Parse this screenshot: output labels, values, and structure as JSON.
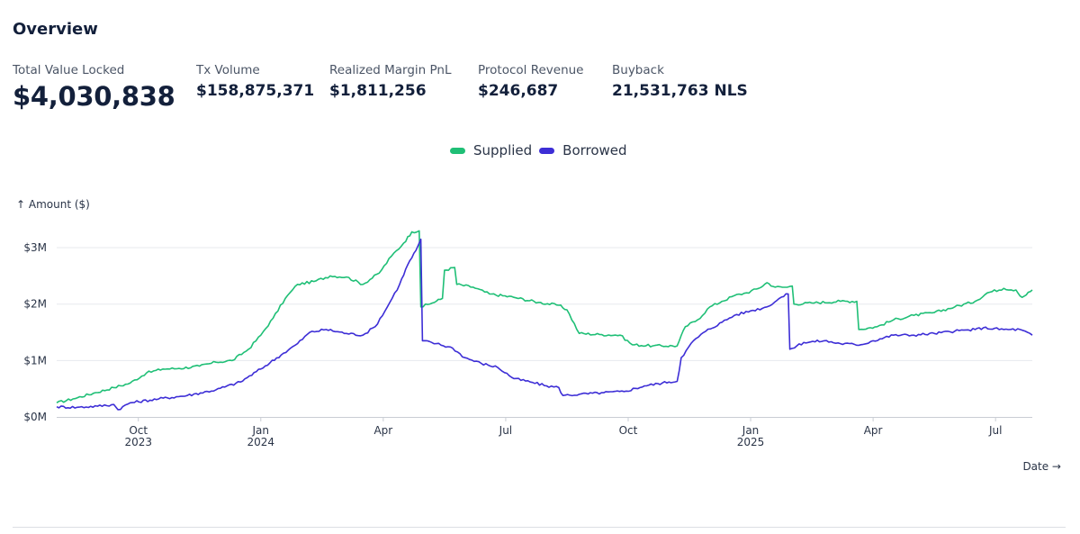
{
  "page": {
    "title": "Overview"
  },
  "stats": [
    {
      "label": "Total Value Locked",
      "value": "$4,030,838"
    },
    {
      "label": "Tx Volume",
      "value": "$158,875,371"
    },
    {
      "label": "Realized Margin PnL",
      "value": "$1,811,256"
    },
    {
      "label": "Protocol Revenue",
      "value": "$246,687"
    },
    {
      "label": "Buyback",
      "value": "21,531,763 NLS"
    }
  ],
  "colors": {
    "supplied": "#1fbf76",
    "borrowed": "#3d2ed6",
    "grid": "#e7e9ee",
    "text": "#2a3447"
  },
  "chart_data": {
    "type": "line",
    "title": "",
    "ylabel": "↑ Amount ($)",
    "xlabel": "Date →",
    "ylim": [
      0,
      3.4
    ],
    "y_unit": "millions",
    "y_ticks": [
      {
        "value": 0,
        "label": "$0M"
      },
      {
        "value": 1,
        "label": "$1M"
      },
      {
        "value": 2,
        "label": "$2M"
      },
      {
        "value": 3,
        "label": "$3M"
      }
    ],
    "xlim": [
      0,
      23.9
    ],
    "x_unit": "months since 2023-08-01",
    "x_ticks": [
      {
        "x": 2,
        "label": "Oct",
        "sub": "2023"
      },
      {
        "x": 5,
        "label": "Jan",
        "sub": "2024"
      },
      {
        "x": 8,
        "label": "Apr",
        "sub": ""
      },
      {
        "x": 11,
        "label": "Jul",
        "sub": ""
      },
      {
        "x": 14,
        "label": "Oct",
        "sub": ""
      },
      {
        "x": 17,
        "label": "Jan",
        "sub": "2025"
      },
      {
        "x": 20,
        "label": "Apr",
        "sub": ""
      },
      {
        "x": 23,
        "label": "Jul",
        "sub": ""
      }
    ],
    "series": [
      {
        "name": "Supplied",
        "points": [
          [
            0,
            0.25
          ],
          [
            0.4,
            0.32
          ],
          [
            0.9,
            0.42
          ],
          [
            1.4,
            0.52
          ],
          [
            1.8,
            0.6
          ],
          [
            2.2,
            0.78
          ],
          [
            2.6,
            0.85
          ],
          [
            3.0,
            0.86
          ],
          [
            3.5,
            0.9
          ],
          [
            3.9,
            0.97
          ],
          [
            4.3,
            1.0
          ],
          [
            4.7,
            1.2
          ],
          [
            5.0,
            1.45
          ],
          [
            5.3,
            1.75
          ],
          [
            5.6,
            2.1
          ],
          [
            5.9,
            2.35
          ],
          [
            6.3,
            2.4
          ],
          [
            6.7,
            2.5
          ],
          [
            7.1,
            2.48
          ],
          [
            7.5,
            2.35
          ],
          [
            7.9,
            2.55
          ],
          [
            8.2,
            2.85
          ],
          [
            8.5,
            3.08
          ],
          [
            8.7,
            3.28
          ],
          [
            8.88,
            3.3
          ],
          [
            8.92,
            1.95
          ],
          [
            9.2,
            2.02
          ],
          [
            9.45,
            2.1
          ],
          [
            9.5,
            2.6
          ],
          [
            9.75,
            2.65
          ],
          [
            9.8,
            2.35
          ],
          [
            10.2,
            2.3
          ],
          [
            10.6,
            2.18
          ],
          [
            11.2,
            2.12
          ],
          [
            11.8,
            2.03
          ],
          [
            12.3,
            1.98
          ],
          [
            12.5,
            1.9
          ],
          [
            12.8,
            1.48
          ],
          [
            13.3,
            1.46
          ],
          [
            13.8,
            1.45
          ],
          [
            14.1,
            1.28
          ],
          [
            14.6,
            1.26
          ],
          [
            15.2,
            1.26
          ],
          [
            15.4,
            1.6
          ],
          [
            15.7,
            1.72
          ],
          [
            16.0,
            1.95
          ],
          [
            16.3,
            2.05
          ],
          [
            16.6,
            2.15
          ],
          [
            16.9,
            2.2
          ],
          [
            17.2,
            2.28
          ],
          [
            17.4,
            2.38
          ],
          [
            17.6,
            2.3
          ],
          [
            17.9,
            2.3
          ],
          [
            18.02,
            2.32
          ],
          [
            18.06,
            2.0
          ],
          [
            18.5,
            2.02
          ],
          [
            19.2,
            2.05
          ],
          [
            19.6,
            2.05
          ],
          [
            19.65,
            1.55
          ],
          [
            20.1,
            1.6
          ],
          [
            20.5,
            1.72
          ],
          [
            21.0,
            1.8
          ],
          [
            21.5,
            1.85
          ],
          [
            22.0,
            1.95
          ],
          [
            22.5,
            2.05
          ],
          [
            22.8,
            2.2
          ],
          [
            23.2,
            2.28
          ],
          [
            23.5,
            2.25
          ],
          [
            23.65,
            2.12
          ],
          [
            23.9,
            2.25
          ]
        ]
      },
      {
        "name": "Borrowed",
        "points": [
          [
            0,
            0.18
          ],
          [
            0.5,
            0.17
          ],
          [
            1.0,
            0.19
          ],
          [
            1.4,
            0.22
          ],
          [
            1.5,
            0.13
          ],
          [
            1.8,
            0.25
          ],
          [
            2.5,
            0.32
          ],
          [
            3.2,
            0.38
          ],
          [
            3.9,
            0.48
          ],
          [
            4.5,
            0.62
          ],
          [
            5.0,
            0.85
          ],
          [
            5.5,
            1.1
          ],
          [
            5.9,
            1.3
          ],
          [
            6.2,
            1.5
          ],
          [
            6.6,
            1.55
          ],
          [
            7.1,
            1.48
          ],
          [
            7.5,
            1.45
          ],
          [
            7.8,
            1.6
          ],
          [
            8.1,
            1.95
          ],
          [
            8.4,
            2.35
          ],
          [
            8.6,
            2.7
          ],
          [
            8.8,
            2.95
          ],
          [
            8.92,
            3.15
          ],
          [
            8.96,
            1.35
          ],
          [
            9.3,
            1.3
          ],
          [
            9.7,
            1.22
          ],
          [
            10.0,
            1.05
          ],
          [
            10.4,
            0.95
          ],
          [
            10.8,
            0.88
          ],
          [
            11.2,
            0.68
          ],
          [
            11.6,
            0.62
          ],
          [
            12.0,
            0.55
          ],
          [
            12.3,
            0.52
          ],
          [
            12.4,
            0.38
          ],
          [
            12.8,
            0.4
          ],
          [
            13.4,
            0.43
          ],
          [
            13.9,
            0.45
          ],
          [
            14.4,
            0.55
          ],
          [
            15.0,
            0.62
          ],
          [
            15.2,
            0.63
          ],
          [
            15.3,
            1.05
          ],
          [
            15.6,
            1.35
          ],
          [
            15.9,
            1.52
          ],
          [
            16.3,
            1.68
          ],
          [
            16.6,
            1.8
          ],
          [
            17.0,
            1.88
          ],
          [
            17.4,
            1.95
          ],
          [
            17.7,
            2.1
          ],
          [
            17.92,
            2.18
          ],
          [
            17.96,
            1.2
          ],
          [
            18.3,
            1.32
          ],
          [
            18.8,
            1.35
          ],
          [
            19.2,
            1.3
          ],
          [
            19.7,
            1.28
          ],
          [
            20.0,
            1.35
          ],
          [
            20.5,
            1.45
          ],
          [
            21.0,
            1.45
          ],
          [
            21.5,
            1.48
          ],
          [
            22.0,
            1.52
          ],
          [
            22.5,
            1.55
          ],
          [
            22.7,
            1.58
          ],
          [
            23.2,
            1.55
          ],
          [
            23.6,
            1.55
          ],
          [
            23.9,
            1.45
          ]
        ]
      }
    ]
  }
}
